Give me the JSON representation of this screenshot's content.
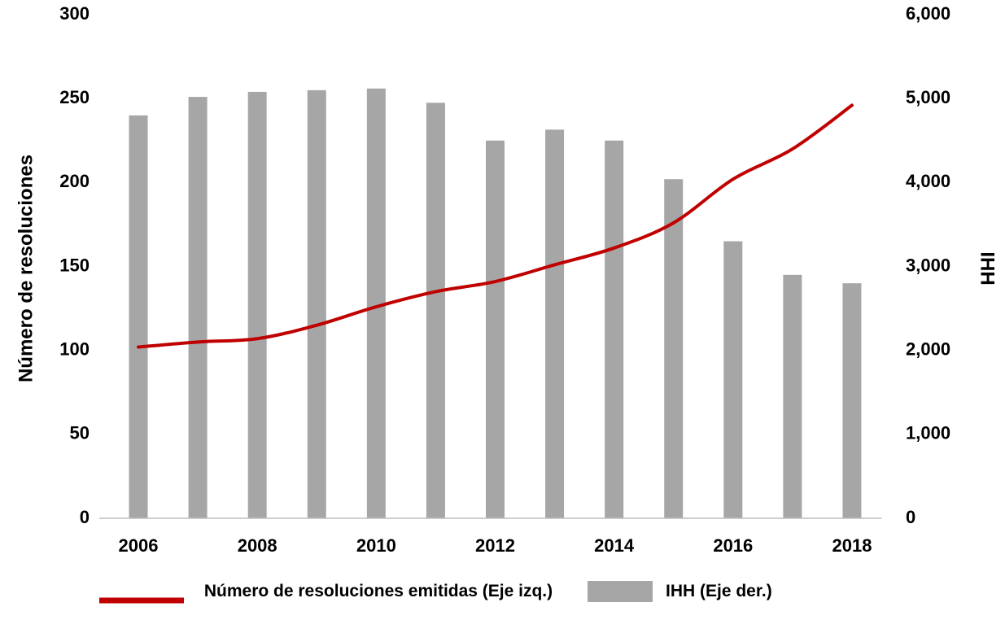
{
  "chart_data": {
    "type": "bar-line",
    "categories": [
      "2006",
      null,
      "2008",
      null,
      "2010",
      null,
      "2012",
      null,
      "2014",
      null,
      "2016",
      null,
      "2018"
    ],
    "series": [
      {
        "name": "Número de resoluciones emitidas (Eje izq.)",
        "type": "line",
        "color": "#c00000",
        "axis": "y",
        "values": [
          102,
          105,
          107,
          115,
          126,
          135,
          141,
          151,
          161,
          176,
          202,
          220,
          246
        ]
      },
      {
        "name": "IHH (Eje der.)",
        "type": "bar",
        "color": "#a6a6a6",
        "axis": "y2",
        "values": [
          4800,
          5020,
          5080,
          5100,
          5120,
          4950,
          4500,
          4630,
          4500,
          4040,
          3300,
          2900,
          2800
        ]
      }
    ],
    "ylabel": "Número de resoluciones",
    "y2label": "IHH",
    "ylim": [
      0,
      300
    ],
    "yticks": [
      0,
      50,
      100,
      150,
      200,
      250,
      300
    ],
    "y2lim": [
      0,
      6000
    ],
    "y2ticks": [
      0,
      {
        "value": 1000,
        "label": "1,000"
      },
      {
        "value": 2000,
        "label": "2,000"
      },
      {
        "value": 3000,
        "label": "3,000"
      },
      {
        "value": 4000,
        "label": "4,000"
      },
      {
        "value": 5000,
        "label": "5,000"
      },
      {
        "value": 6000,
        "label": "6,000"
      }
    ],
    "legend": "bottom"
  }
}
